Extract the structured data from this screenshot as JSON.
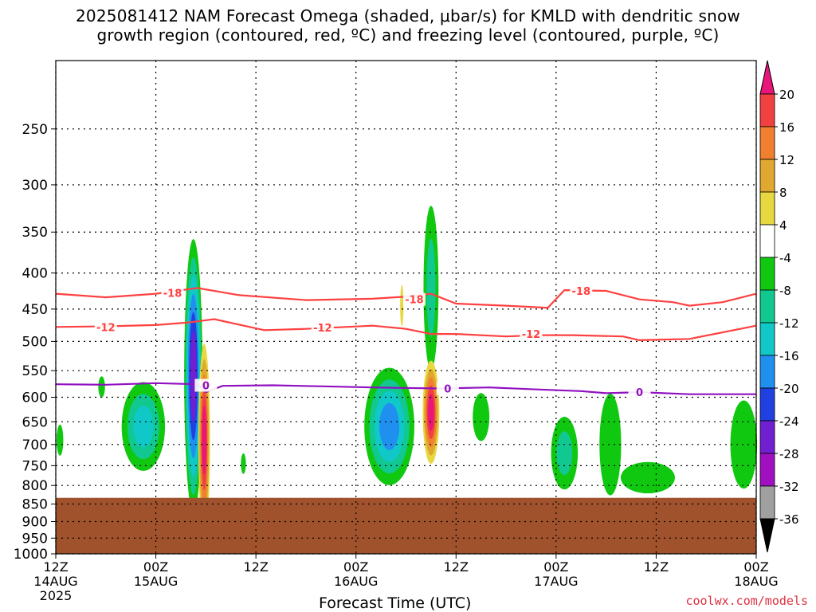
{
  "title_line1": "2025081412 NAM Forecast Omega (shaded, μbar/s) for KMLD with dendritic snow",
  "title_line2": "growth region (contoured, red, ºC) and freezing level (contoured, purple, ºC)",
  "credit": "coolwx.com/models",
  "chart_data": {
    "type": "heatmap",
    "title": "2025081412 NAM Forecast Omega (shaded, μbar/s) for KMLD with dendritic snow growth region (contoured, red, ºC) and freezing level (contoured, purple, ºC)",
    "xlabel": "Forecast Time (UTC)",
    "ylabel": "",
    "x_hours": [
      0,
      84
    ],
    "y_pressure": [
      200,
      1000
    ],
    "yticks": [
      250,
      300,
      350,
      400,
      450,
      500,
      550,
      600,
      650,
      700,
      750,
      800,
      850,
      900,
      950,
      1000
    ],
    "xticks": [
      {
        "h": 0,
        "l1": "12Z",
        "l2": "14AUG",
        "l3": "2025"
      },
      {
        "h": 12,
        "l1": "00Z",
        "l2": "15AUG",
        "l3": ""
      },
      {
        "h": 24,
        "l1": "12Z",
        "l2": "",
        "l3": ""
      },
      {
        "h": 36,
        "l1": "00Z",
        "l2": "16AUG",
        "l3": ""
      },
      {
        "h": 48,
        "l1": "12Z",
        "l2": "",
        "l3": ""
      },
      {
        "h": 60,
        "l1": "00Z",
        "l2": "17AUG",
        "l3": ""
      },
      {
        "h": 72,
        "l1": "12Z",
        "l2": "",
        "l3": ""
      },
      {
        "h": 84,
        "l1": "00Z",
        "l2": "18AUG",
        "l3": ""
      }
    ],
    "surface_pressure": 833,
    "colorbar": {
      "levels": [
        20,
        16,
        12,
        8,
        4,
        -4,
        -8,
        -12,
        -16,
        -20,
        -24,
        -28,
        -32,
        -36
      ],
      "colors": [
        "#e8157a",
        "#f04040",
        "#f08030",
        "#e0a830",
        "#e8d840",
        "#ffffff",
        "#10c810",
        "#10c890",
        "#10c8c8",
        "#2090f0",
        "#2040e0",
        "#7020d0",
        "#a010c0",
        "#a0a0a0",
        "#000000"
      ]
    },
    "omega_blobs": [
      {
        "h": 0.5,
        "p": 690,
        "w": 0.8,
        "ph": 70,
        "colors": [
          "#10c810"
        ]
      },
      {
        "h": 5.5,
        "p": 580,
        "w": 0.8,
        "ph": 40,
        "colors": [
          "#10c810"
        ]
      },
      {
        "h": 10.5,
        "p": 660,
        "w": 5.2,
        "ph": 190,
        "colors": [
          "#10c810",
          "#10c890",
          "#10c8c8"
        ]
      },
      {
        "h": 16.5,
        "p": 560,
        "w": 2.2,
        "ph": 470,
        "colors": [
          "#10c810",
          "#10c890",
          "#10c8c8",
          "#2090f0",
          "#2040e0",
          "#7020d0"
        ]
      },
      {
        "h": 17.8,
        "p": 690,
        "w": 1.4,
        "ph": 420,
        "colors": [
          "#e8d840",
          "#e0a830",
          "#f08030",
          "#f04040",
          "#e8157a"
        ]
      },
      {
        "h": 22.5,
        "p": 745,
        "w": 0.6,
        "ph": 50,
        "colors": [
          "#10c810"
        ]
      },
      {
        "h": 40.0,
        "p": 660,
        "w": 6.0,
        "ph": 250,
        "colors": [
          "#10c810",
          "#10c890",
          "#10c8c8",
          "#2090f0"
        ]
      },
      {
        "h": 45.0,
        "p": 420,
        "w": 1.8,
        "ph": 220,
        "colors": [
          "#10c810",
          "#10c890"
        ]
      },
      {
        "h": 45.0,
        "p": 630,
        "w": 2.0,
        "ph": 210,
        "colors": [
          "#e8d840",
          "#e0a830",
          "#f08030",
          "#f04040",
          "#e8157a"
        ]
      },
      {
        "h": 41.5,
        "p": 445,
        "w": 0.4,
        "ph": 60,
        "colors": [
          "#e8d840"
        ]
      },
      {
        "h": 51.0,
        "p": 640,
        "w": 2.0,
        "ph": 100,
        "colors": [
          "#10c810"
        ]
      },
      {
        "h": 61.0,
        "p": 720,
        "w": 3.2,
        "ph": 170,
        "colors": [
          "#10c810",
          "#10c890"
        ]
      },
      {
        "h": 66.5,
        "p": 700,
        "w": 2.6,
        "ph": 230,
        "colors": [
          "#10c810"
        ]
      },
      {
        "h": 71.0,
        "p": 780,
        "w": 6.5,
        "ph": 80,
        "colors": [
          "#10c810"
        ]
      },
      {
        "h": 82.5,
        "p": 700,
        "w": 3.2,
        "ph": 200,
        "colors": [
          "#10c810"
        ]
      }
    ],
    "contours": [
      {
        "label": "-18",
        "color": "#ff4040",
        "points": [
          [
            0,
            428
          ],
          [
            6,
            433
          ],
          [
            12,
            428
          ],
          [
            17,
            420
          ],
          [
            22,
            430
          ],
          [
            30,
            437
          ],
          [
            38,
            435
          ],
          [
            42,
            432
          ],
          [
            45,
            428
          ],
          [
            48,
            442
          ],
          [
            54,
            445
          ],
          [
            59,
            448
          ],
          [
            61,
            423
          ],
          [
            66,
            424
          ],
          [
            70,
            436
          ],
          [
            74,
            440
          ],
          [
            76,
            445
          ],
          [
            80,
            440
          ],
          [
            84,
            428
          ]
        ],
        "labels": [
          [
            14,
            427
          ],
          [
            43,
            436
          ],
          [
            63,
            424
          ]
        ]
      },
      {
        "label": "-12",
        "color": "#ff4040",
        "points": [
          [
            0,
            477
          ],
          [
            6,
            476
          ],
          [
            12,
            474
          ],
          [
            16,
            470
          ],
          [
            19,
            465
          ],
          [
            25,
            482
          ],
          [
            30,
            480
          ],
          [
            38,
            475
          ],
          [
            42,
            480
          ],
          [
            45,
            488
          ],
          [
            48,
            488
          ],
          [
            54,
            492
          ],
          [
            58,
            490
          ],
          [
            62,
            490
          ],
          [
            68,
            492
          ],
          [
            70,
            498
          ],
          [
            76,
            496
          ],
          [
            84,
            475
          ]
        ],
        "labels": [
          [
            6,
            477
          ],
          [
            32,
            478
          ],
          [
            57,
            488
          ]
        ]
      },
      {
        "label": "0",
        "color": "#9010c0",
        "points": [
          [
            0,
            575
          ],
          [
            6,
            576
          ],
          [
            12,
            573
          ],
          [
            17,
            575
          ],
          [
            18,
            590
          ],
          [
            20,
            578
          ],
          [
            26,
            577
          ],
          [
            32,
            579
          ],
          [
            38,
            581
          ],
          [
            46,
            583
          ],
          [
            52,
            581
          ],
          [
            58,
            585
          ],
          [
            63,
            588
          ],
          [
            66,
            592
          ],
          [
            70,
            590
          ],
          [
            76,
            594
          ],
          [
            84,
            594
          ]
        ],
        "labels": [
          [
            18,
            577
          ],
          [
            47,
            583
          ],
          [
            70,
            590
          ]
        ]
      }
    ]
  }
}
